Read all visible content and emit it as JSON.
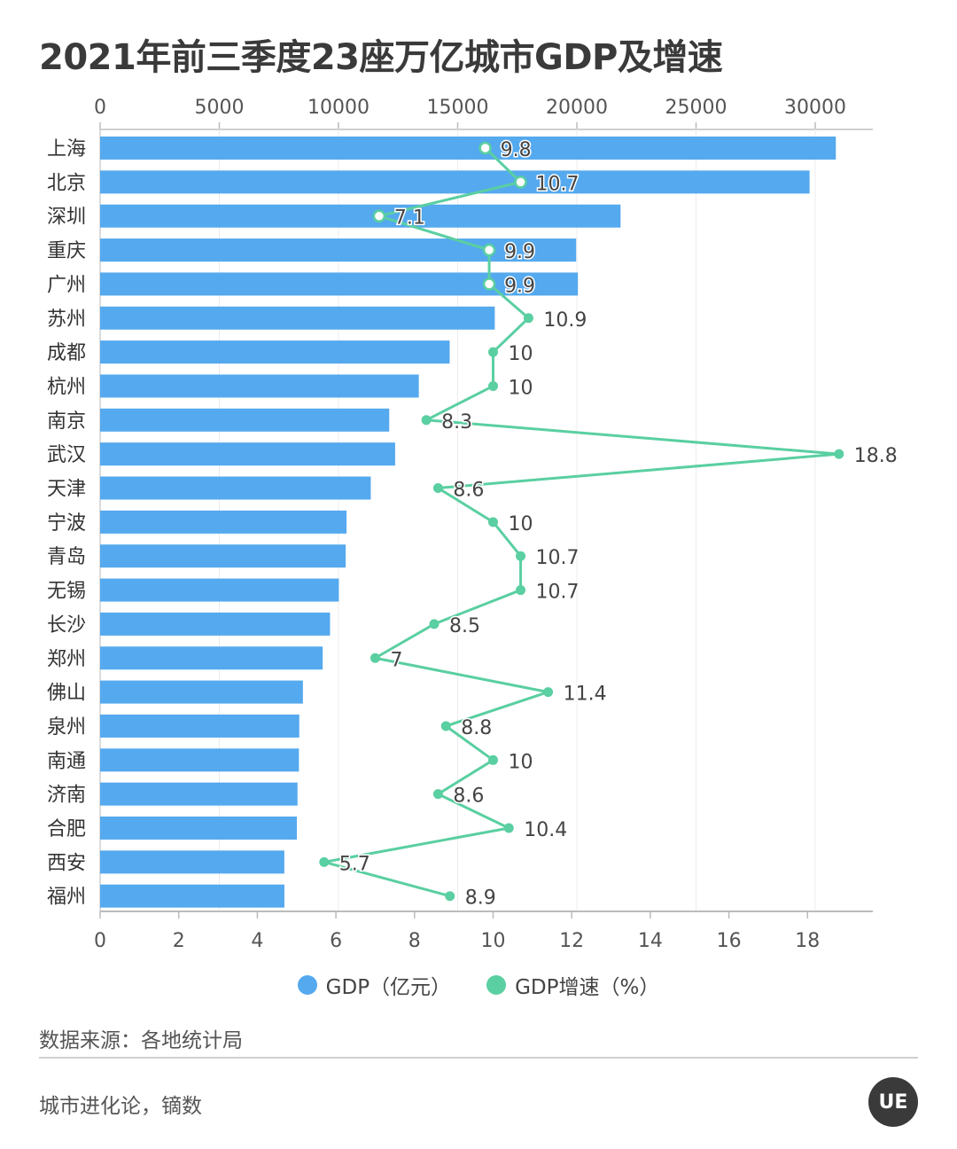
{
  "title": "2021年前三季度23座万亿城市GDP及增速",
  "chart_data": {
    "type": "bar+line",
    "categories": [
      "上海",
      "北京",
      "深圳",
      "重庆",
      "广州",
      "苏州",
      "成都",
      "杭州",
      "南京",
      "武汉",
      "天津",
      "宁波",
      "青岛",
      "无锡",
      "长沙",
      "郑州",
      "佛山",
      "泉州",
      "南通",
      "济南",
      "合肥",
      "西安",
      "福州"
    ],
    "series": [
      {
        "name": "GDP（亿元）",
        "type": "bar",
        "axis": "top",
        "values": [
          30866,
          29763,
          21833,
          19970,
          20044,
          16557,
          14664,
          13370,
          12129,
          12376,
          11354,
          10337,
          10301,
          10015,
          9645,
          9336,
          8507,
          8355,
          8339,
          8281,
          8255,
          7727,
          7730
        ]
      },
      {
        "name": "GDP增速（%）",
        "type": "line",
        "axis": "bottom",
        "values": [
          9.8,
          10.7,
          7.1,
          9.9,
          9.9,
          10.9,
          10,
          10,
          8.3,
          18.8,
          8.6,
          10,
          10.7,
          10.7,
          8.5,
          7,
          11.4,
          8.8,
          10,
          8.6,
          10.4,
          5.7,
          8.9
        ]
      }
    ],
    "top_axis": {
      "range": [
        0,
        32000
      ],
      "ticks": [
        "0",
        "5000",
        "10000",
        "15000",
        "20000",
        "25000",
        "30000"
      ]
    },
    "bottom_axis": {
      "range": [
        0,
        19
      ],
      "ticks": [
        "0",
        "2",
        "4",
        "6",
        "8",
        "10",
        "12",
        "14",
        "16",
        "18"
      ]
    },
    "legend_position": "bottom-center",
    "colors": {
      "bar": "#55A9EE",
      "line": "#5ACFA1"
    }
  },
  "legend": [
    {
      "label": "GDP（亿元）",
      "color": "#55A9EE"
    },
    {
      "label": "GDP增速（%）",
      "color": "#5ACFA1"
    }
  ],
  "source": "数据来源：各地统计局",
  "credit": "城市进化论，镝数",
  "logo_text": "UE"
}
